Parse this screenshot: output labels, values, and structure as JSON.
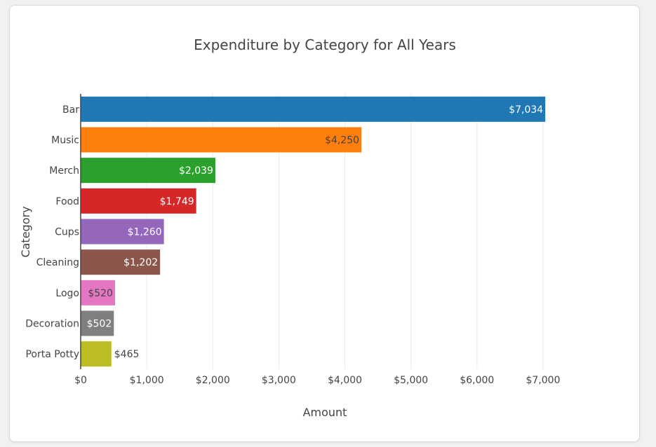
{
  "chart_data": {
    "type": "bar",
    "orientation": "horizontal",
    "title": "Expenditure by Category for All Years",
    "xlabel": "Amount",
    "ylabel": "Category",
    "categories": [
      "Bar",
      "Music",
      "Merch",
      "Food",
      "Cups",
      "Cleaning",
      "Logo",
      "Decoration",
      "Porta Potty"
    ],
    "values": [
      7034,
      4250,
      2039,
      1749,
      1260,
      1202,
      520,
      502,
      465
    ],
    "value_labels": [
      "$7,034",
      "$4,250",
      "$2,039",
      "$1,749",
      "$1,260",
      "$1,202",
      "$520",
      "$502",
      "$465"
    ],
    "colors": [
      "#1f77b4",
      "#ff7f0e",
      "#2ca02c",
      "#d62728",
      "#9467bd",
      "#8c564b",
      "#e377c2",
      "#7f7f7f",
      "#bcbd22"
    ],
    "label_colors": [
      "#ffffff",
      "#444444",
      "#ffffff",
      "#ffffff",
      "#ffffff",
      "#ffffff",
      "#444444",
      "#ffffff",
      "#444444"
    ],
    "label_inside": [
      true,
      true,
      true,
      true,
      true,
      true,
      true,
      true,
      false
    ],
    "xlim": [
      0,
      7000
    ],
    "xticks": [
      0,
      1000,
      2000,
      3000,
      4000,
      5000,
      6000,
      7000
    ],
    "xtick_labels": [
      "$0",
      "$1,000",
      "$2,000",
      "$3,000",
      "$4,000",
      "$5,000",
      "$6,000",
      "$7,000"
    ],
    "grid": true,
    "legend": "none"
  }
}
